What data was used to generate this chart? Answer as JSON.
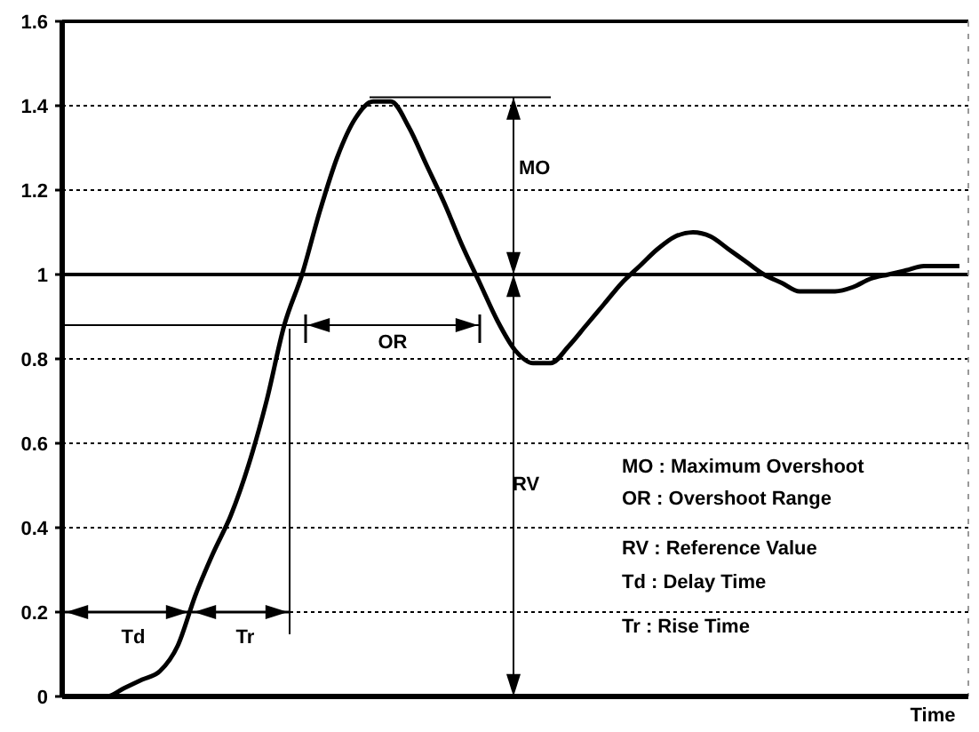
{
  "chart_data": {
    "type": "line",
    "xlabel": "Time",
    "categories": [
      null,
      null,
      null,
      null,
      null,
      null,
      null,
      null,
      null,
      null,
      null,
      null,
      null,
      null,
      null,
      null,
      null,
      null,
      null,
      null,
      null,
      null,
      null,
      null,
      null,
      null,
      null,
      null,
      null,
      null,
      null,
      null,
      null,
      null,
      null,
      null,
      null,
      null,
      null,
      null,
      null,
      null,
      null,
      null,
      null,
      null,
      null,
      null,
      null,
      null
    ],
    "series": [
      {
        "color": "#000000",
        "values": [
          0,
          0,
          0.02,
          0.04,
          0.06,
          0.12,
          0.24,
          0.34,
          0.43,
          0.55,
          0.7,
          0.88,
          1.0,
          1.15,
          1.28,
          1.37,
          1.41,
          1.41,
          1.35,
          1.26,
          1.17,
          1.07,
          0.98,
          0.89,
          0.82,
          0.79,
          0.79,
          0.83,
          0.88,
          0.93,
          0.98,
          1.02,
          1.06,
          1.09,
          1.1,
          1.09,
          1.06,
          1.03,
          1.0,
          0.98,
          0.96,
          0.96,
          0.96,
          0.97,
          0.99,
          1.0,
          1.01,
          1.02,
          1.02,
          1.02
        ]
      }
    ],
    "ylim": [
      0,
      1.6
    ],
    "yticks": [
      0,
      0.2,
      0.4,
      0.6,
      0.8,
      1,
      1.2,
      1.4,
      1.6
    ],
    "grid": "y",
    "marker": "none",
    "line_style": "solid",
    "ref_lines": [
      {
        "axis": "y",
        "value": 1,
        "color": "#000000"
      }
    ],
    "annotations": [
      "MO",
      "OR",
      "RV",
      "Td",
      "Tr",
      "MO : Maximum Overshoot",
      "OR : Overshoot Range",
      "RV : Reference Value",
      "Td : Delay Time",
      "Tr : Rise Time"
    ]
  }
}
